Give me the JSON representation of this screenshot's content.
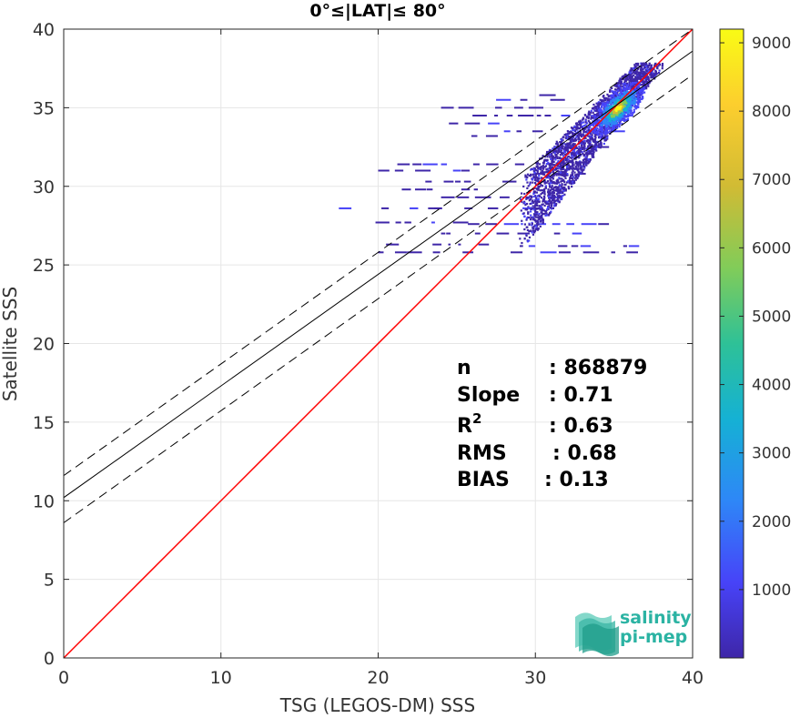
{
  "chart_data": {
    "type": "heatmap",
    "title": "0°≤|LAT|≤ 80°",
    "xlabel": "TSG (LEGOS-DM) SSS",
    "ylabel": "Satellite SSS",
    "xlim": [
      0,
      40
    ],
    "ylim": [
      0,
      40
    ],
    "x_ticks": [
      "0",
      "10",
      "20",
      "30",
      "40"
    ],
    "y_ticks": [
      "0",
      "5",
      "10",
      "15",
      "20",
      "25",
      "30",
      "35",
      "40"
    ],
    "grid": true,
    "colorbar": {
      "range": [
        0,
        9200
      ],
      "ticks": [
        "1000",
        "2000",
        "3000",
        "4000",
        "5000",
        "6000",
        "7000",
        "8000",
        "9000"
      ],
      "colormap": [
        "#3e26a8",
        "#4743f8",
        "#2e87f7",
        "#15b1d4",
        "#2ec197",
        "#81cc59",
        "#d1bb34",
        "#fcce2e",
        "#f9fb15"
      ]
    },
    "lines": [
      {
        "name": "one-to-one",
        "color": "#ff0000",
        "x": [
          0,
          40
        ],
        "y": [
          0,
          40
        ]
      },
      {
        "name": "fit",
        "color": "#000000",
        "style": "solid",
        "x": [
          0,
          40
        ],
        "y": [
          10.2,
          38.6
        ]
      },
      {
        "name": "fit-upper",
        "color": "#000000",
        "style": "dashed",
        "x": [
          0,
          40
        ],
        "y": [
          11.6,
          40.0
        ]
      },
      {
        "name": "fit-lower",
        "color": "#000000",
        "style": "dashed",
        "x": [
          0,
          40
        ],
        "y": [
          8.6,
          37.1
        ]
      }
    ],
    "density_center": [
      35.2,
      35.0
    ],
    "stats": [
      {
        "label": "n",
        "sep": ":",
        "value": "868879"
      },
      {
        "label": "Slope",
        "sep": ":",
        "value": "0.71"
      },
      {
        "label": "R",
        "sup": "2",
        "sep": ":",
        "value": "0.63"
      },
      {
        "label": "RMS",
        "sep": ":",
        "value": "0.68"
      },
      {
        "label": "BIAS",
        "sep": ":",
        "value": "0.13"
      }
    ]
  },
  "logo": {
    "line1": "salinity",
    "line2": "pi-mep",
    "color": "#2bb3a3"
  }
}
